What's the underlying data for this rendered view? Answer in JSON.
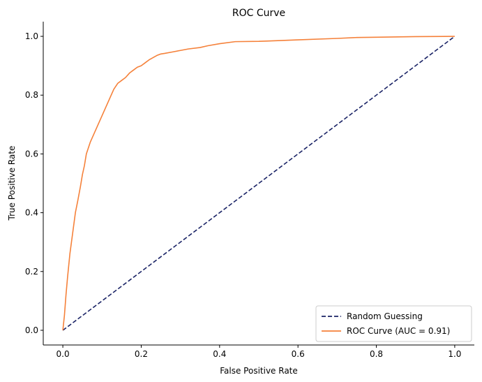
{
  "chart_data": {
    "type": "line",
    "title": "ROC Curve",
    "xlabel": "False Positive Rate",
    "ylabel": "True Positive Rate",
    "xlim": [
      -0.05,
      1.05
    ],
    "ylim": [
      -0.05,
      1.05
    ],
    "xticks": [
      "0.0",
      "0.2",
      "0.4",
      "0.6",
      "0.8",
      "1.0"
    ],
    "yticks": [
      "0.0",
      "0.2",
      "0.4",
      "0.6",
      "0.8",
      "1.0"
    ],
    "grid": false,
    "legend_position": "lower-right",
    "series": [
      {
        "name": "Random Guessing",
        "style": "dashed",
        "color": "#1a2366",
        "x": [
          0.0,
          1.0
        ],
        "y": [
          0.0,
          1.0
        ]
      },
      {
        "name": "ROC Curve (AUC = 0.91)",
        "style": "solid",
        "color": "#f5813a",
        "x": [
          0.0,
          0.004,
          0.008,
          0.012,
          0.018,
          0.025,
          0.032,
          0.038,
          0.045,
          0.05,
          0.055,
          0.06,
          0.065,
          0.07,
          0.08,
          0.09,
          0.1,
          0.11,
          0.12,
          0.13,
          0.14,
          0.15,
          0.16,
          0.17,
          0.18,
          0.19,
          0.2,
          0.21,
          0.22,
          0.24,
          0.25,
          0.26,
          0.28,
          0.3,
          0.32,
          0.35,
          0.37,
          0.4,
          0.44,
          0.5,
          0.52,
          0.6,
          0.7,
          0.75,
          0.8,
          0.9,
          1.0
        ],
        "y": [
          0.0,
          0.05,
          0.12,
          0.18,
          0.26,
          0.33,
          0.4,
          0.44,
          0.49,
          0.53,
          0.56,
          0.6,
          0.62,
          0.64,
          0.67,
          0.7,
          0.73,
          0.76,
          0.79,
          0.82,
          0.84,
          0.85,
          0.86,
          0.875,
          0.885,
          0.895,
          0.9,
          0.91,
          0.92,
          0.935,
          0.94,
          0.942,
          0.947,
          0.952,
          0.957,
          0.962,
          0.968,
          0.975,
          0.982,
          0.983,
          0.984,
          0.988,
          0.993,
          0.996,
          0.997,
          0.999,
          1.0
        ]
      }
    ]
  }
}
